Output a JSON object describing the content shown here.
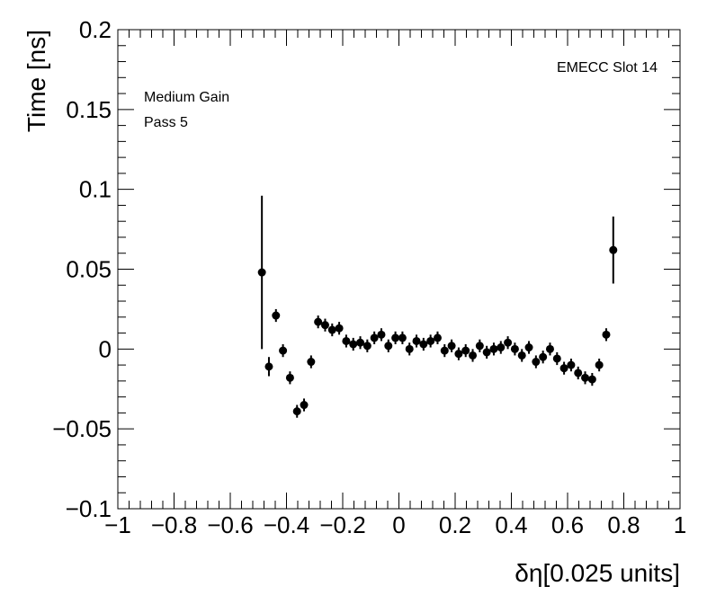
{
  "chart_data": {
    "type": "scatter",
    "xlabel": "δη[0.025 units]",
    "ylabel": "Time [ns]",
    "xlim": [
      -1,
      1
    ],
    "ylim": [
      -0.1,
      0.2
    ],
    "x_ticks": [
      -1,
      -0.8,
      -0.6,
      -0.4,
      -0.2,
      0,
      0.2,
      0.4,
      0.6,
      0.8,
      1
    ],
    "x_tick_labels": [
      "−1",
      "−0.8",
      "−0.6",
      "−0.4",
      "−0.2",
      "0",
      "0.2",
      "0.4",
      "0.6",
      "0.8",
      "1"
    ],
    "y_ticks": [
      -0.1,
      -0.05,
      0,
      0.05,
      0.1,
      0.15,
      0.2
    ],
    "y_tick_labels": [
      "−0.1",
      "−0.05",
      "0",
      "0.05",
      "0.1",
      "0.15",
      "0.2"
    ],
    "annotations": {
      "top_right": "EMECC Slot 14",
      "gain": "Medium Gain",
      "pass": "Pass 5"
    },
    "marker_color": "#000000",
    "points": [
      {
        "x": -0.4875,
        "y": 0.048,
        "err": 0.048
      },
      {
        "x": -0.4625,
        "y": -0.011,
        "err": 0.006
      },
      {
        "x": -0.4375,
        "y": 0.021,
        "err": 0.004
      },
      {
        "x": -0.4125,
        "y": -0.001,
        "err": 0.004
      },
      {
        "x": -0.3875,
        "y": -0.018,
        "err": 0.004
      },
      {
        "x": -0.3625,
        "y": -0.039,
        "err": 0.004
      },
      {
        "x": -0.3375,
        "y": -0.035,
        "err": 0.004
      },
      {
        "x": -0.3125,
        "y": -0.008,
        "err": 0.004
      },
      {
        "x": -0.2875,
        "y": 0.017,
        "err": 0.004
      },
      {
        "x": -0.2625,
        "y": 0.015,
        "err": 0.004
      },
      {
        "x": -0.2375,
        "y": 0.012,
        "err": 0.004
      },
      {
        "x": -0.2125,
        "y": 0.013,
        "err": 0.004
      },
      {
        "x": -0.1875,
        "y": 0.005,
        "err": 0.004
      },
      {
        "x": -0.1625,
        "y": 0.003,
        "err": 0.004
      },
      {
        "x": -0.1375,
        "y": 0.004,
        "err": 0.004
      },
      {
        "x": -0.1125,
        "y": 0.002,
        "err": 0.004
      },
      {
        "x": -0.0875,
        "y": 0.007,
        "err": 0.004
      },
      {
        "x": -0.0625,
        "y": 0.009,
        "err": 0.004
      },
      {
        "x": -0.0375,
        "y": 0.002,
        "err": 0.004
      },
      {
        "x": -0.0125,
        "y": 0.007,
        "err": 0.004
      },
      {
        "x": 0.0125,
        "y": 0.007,
        "err": 0.004
      },
      {
        "x": 0.0375,
        "y": 0.0,
        "err": 0.004
      },
      {
        "x": 0.0625,
        "y": 0.005,
        "err": 0.004
      },
      {
        "x": 0.0875,
        "y": 0.003,
        "err": 0.004
      },
      {
        "x": 0.1125,
        "y": 0.005,
        "err": 0.004
      },
      {
        "x": 0.1375,
        "y": 0.007,
        "err": 0.004
      },
      {
        "x": 0.1625,
        "y": -0.001,
        "err": 0.004
      },
      {
        "x": 0.1875,
        "y": 0.002,
        "err": 0.004
      },
      {
        "x": 0.2125,
        "y": -0.003,
        "err": 0.004
      },
      {
        "x": 0.2375,
        "y": -0.001,
        "err": 0.004
      },
      {
        "x": 0.2625,
        "y": -0.004,
        "err": 0.004
      },
      {
        "x": 0.2875,
        "y": 0.002,
        "err": 0.004
      },
      {
        "x": 0.3125,
        "y": -0.002,
        "err": 0.004
      },
      {
        "x": 0.3375,
        "y": 0.0,
        "err": 0.004
      },
      {
        "x": 0.3625,
        "y": 0.001,
        "err": 0.004
      },
      {
        "x": 0.3875,
        "y": 0.004,
        "err": 0.004
      },
      {
        "x": 0.4125,
        "y": 0.0,
        "err": 0.004
      },
      {
        "x": 0.4375,
        "y": -0.004,
        "err": 0.004
      },
      {
        "x": 0.4625,
        "y": 0.001,
        "err": 0.004
      },
      {
        "x": 0.4875,
        "y": -0.008,
        "err": 0.004
      },
      {
        "x": 0.5125,
        "y": -0.005,
        "err": 0.004
      },
      {
        "x": 0.5375,
        "y": 0.0,
        "err": 0.004
      },
      {
        "x": 0.5625,
        "y": -0.006,
        "err": 0.004
      },
      {
        "x": 0.5875,
        "y": -0.012,
        "err": 0.004
      },
      {
        "x": 0.6125,
        "y": -0.01,
        "err": 0.004
      },
      {
        "x": 0.6375,
        "y": -0.015,
        "err": 0.004
      },
      {
        "x": 0.6625,
        "y": -0.018,
        "err": 0.004
      },
      {
        "x": 0.6875,
        "y": -0.019,
        "err": 0.004
      },
      {
        "x": 0.7125,
        "y": -0.01,
        "err": 0.004
      },
      {
        "x": 0.7375,
        "y": 0.009,
        "err": 0.004
      },
      {
        "x": 0.7625,
        "y": 0.062,
        "err": 0.021
      }
    ]
  }
}
